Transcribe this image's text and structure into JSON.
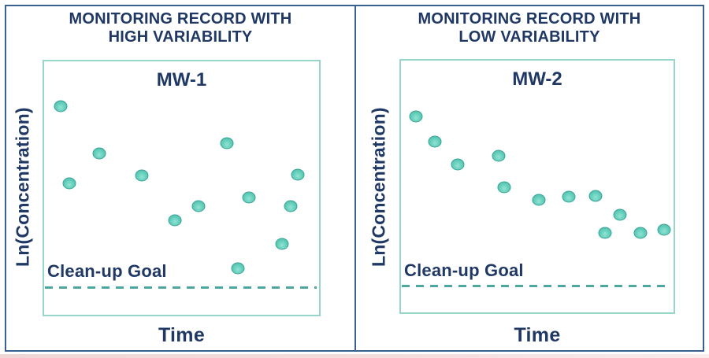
{
  "figure": {
    "panels": [
      {
        "title_line1": "MONITORING RECORD WITH",
        "title_line2": "HIGH VARIABILITY",
        "well_label": "MW-1",
        "ylabel": "Ln(Concentration)",
        "xlabel": "Time",
        "goal_label": "Clean-up Goal"
      },
      {
        "title_line1": "MONITORING RECORD WITH",
        "title_line2": "LOW VARIABILITY",
        "well_label": "MW-2",
        "ylabel": "Ln(Concentration)",
        "xlabel": "Time",
        "goal_label": "Clean-up Goal"
      }
    ]
  },
  "colors": {
    "text_navy": "#1F3864",
    "panel_border": "#3A6090",
    "plot_border": "#97D5CA",
    "goal_line_teal": "#4CA89E",
    "marker_fill": "#5FCDBA",
    "marker_edge": "#3CA495",
    "bottom_strip_pink": "#F3DCDC"
  },
  "chart_data": [
    {
      "type": "scatter",
      "title": "MONITORING RECORD WITH HIGH VARIABILITY",
      "series_label": "MW-1",
      "xlabel": "Time",
      "ylabel": "Ln(Concentration)",
      "goal_line_label": "Clean-up Goal",
      "axes_numeric": false,
      "layout_note": "points_pct are [x,y] percent of plot area, y measured from top; all points lie above the dashed clean-up goal line",
      "points_pct": [
        [
          5.9,
          17.8
        ],
        [
          9.3,
          48.1
        ],
        [
          20.1,
          36.4
        ],
        [
          35.5,
          44.9
        ],
        [
          47.5,
          62.8
        ],
        [
          56.1,
          57.1
        ],
        [
          66.4,
          32.3
        ],
        [
          70.4,
          81.8
        ],
        [
          74.4,
          53.8
        ],
        [
          86.6,
          72.1
        ],
        [
          89.8,
          57.1
        ],
        [
          92.4,
          44.7
        ]
      ],
      "goal_line_y_pct": 88.7,
      "legend": "none",
      "grid": false
    },
    {
      "type": "scatter",
      "title": "MONITORING RECORD WITH LOW VARIABILITY",
      "series_label": "MW-2",
      "xlabel": "Time",
      "ylabel": "Ln(Concentration)",
      "goal_line_label": "Clean-up Goal",
      "axes_numeric": false,
      "layout_note": "points_pct are [x,y] percent of plot area, y measured from top; steady declining trend toward the clean-up goal",
      "points_pct": [
        [
          5.5,
          22.1
        ],
        [
          12.5,
          32.3
        ],
        [
          20.7,
          41.2
        ],
        [
          35.8,
          37.8
        ],
        [
          37.8,
          50.2
        ],
        [
          50.6,
          55.2
        ],
        [
          61.6,
          54.2
        ],
        [
          71.3,
          53.7
        ],
        [
          74.9,
          68.4
        ],
        [
          80.3,
          61.2
        ],
        [
          87.9,
          68.4
        ],
        [
          96.5,
          67.2
        ]
      ],
      "goal_line_y_pct": 89.1,
      "legend": "none",
      "grid": false
    }
  ]
}
